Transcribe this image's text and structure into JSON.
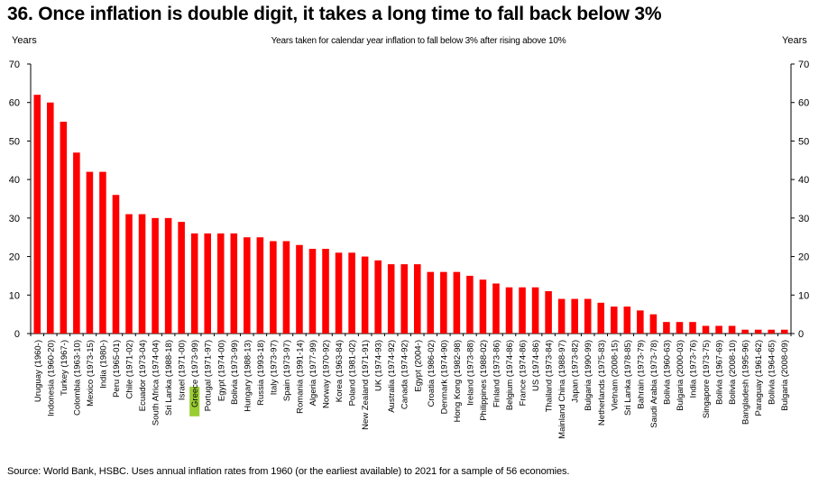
{
  "header": {
    "title": "36. Once inflation is double digit, it takes a long time to fall back below 3%",
    "units_left": "Years",
    "units_right": "Years",
    "subtitle": "Years taken for calendar year inflation to fall below 3% after rising above 10%"
  },
  "footer": {
    "source": "Source: World Bank, HSBC. Uses annual inflation rates from 1960 (or the earliest available) to 2021 for a sample of 56 economies."
  },
  "colors": {
    "bar": "#ff0000",
    "highlight": "#9acd32",
    "axis": "#000000"
  },
  "chart_data": {
    "type": "bar",
    "title": "Years taken for calendar year inflation to fall below 3% after rising above 10%",
    "ylabel": "Years",
    "ylabel_right": "Years",
    "ylim": [
      0,
      70
    ],
    "yticks": [
      0,
      10,
      20,
      30,
      40,
      50,
      60,
      70
    ],
    "grid": false,
    "highlighted_category": "Greece (1973-99)",
    "categories": [
      "Uruguay (1960-)",
      "Indonesia (1960-20)",
      "Turkey (1967-)",
      "Colombia (1963-10)",
      "Mexico (1973-15)",
      "India (1980-)",
      "Peru (1965-01)",
      "Chile (1971-02)",
      "Ecuador (1973-04)",
      "South Africa (1974-04)",
      "Sri Lanka (1988-18)",
      "Israel (1971-00)",
      "Greece (1973-99)",
      "Portugal (1971-97)",
      "Egypt (1974-00)",
      "Bolivia (1973-99)",
      "Hungary (1988-13)",
      "Russia (1993-18)",
      "Italy (1973-97)",
      "Spain (1973-97)",
      "Romania (1991-14)",
      "Algeria (1977-99)",
      "Norway (1970-92)",
      "Korea (1963-84)",
      "Poland (1981-02)",
      "New Zealand (1971-91)",
      "UK (1974-93)",
      "Australia (1974-92)",
      "Canada (1974-92)",
      "Egypt (2004-)",
      "Croatia (1986-02)",
      "Denmark (1974-90)",
      "Hong Kong (1982-98)",
      "Ireland (1973-88)",
      "Philippines (1988-02)",
      "Finland (1973-86)",
      "Belgium (1974-86)",
      "France (1974-86)",
      "US (1974-86)",
      "Thailand (1973-84)",
      "Mainland China (1988-97)",
      "Japan (1973-82)",
      "Bulgaria (1990-99)",
      "Netherlands (1975-83)",
      "Vietnam (2008-15)",
      "Sri Lanka (1978-85)",
      "Bahrain (1973-79)",
      "Saudi Arabia (1973-78)",
      "Bolivia (1960-63)",
      "Bulgaria (2000-03)",
      "India (1973-76)",
      "Singapore (1973-75)",
      "Bolivia (1967-69)",
      "Bolivia (2008-10)",
      "Bangladesh (1995-96)",
      "Paraguay (1961-62)",
      "Bolivia (1964-65)",
      "Bulgaria (2008-09)"
    ],
    "values": [
      62,
      60,
      55,
      47,
      42,
      42,
      36,
      31,
      31,
      30,
      30,
      29,
      26,
      26,
      26,
      26,
      25,
      25,
      24,
      24,
      23,
      22,
      22,
      21,
      21,
      20,
      19,
      18,
      18,
      18,
      16,
      16,
      16,
      15,
      14,
      13,
      12,
      12,
      12,
      11,
      9,
      9,
      9,
      8,
      7,
      7,
      6,
      5,
      3,
      3,
      3,
      2,
      2,
      2,
      1,
      1,
      1,
      1
    ]
  }
}
